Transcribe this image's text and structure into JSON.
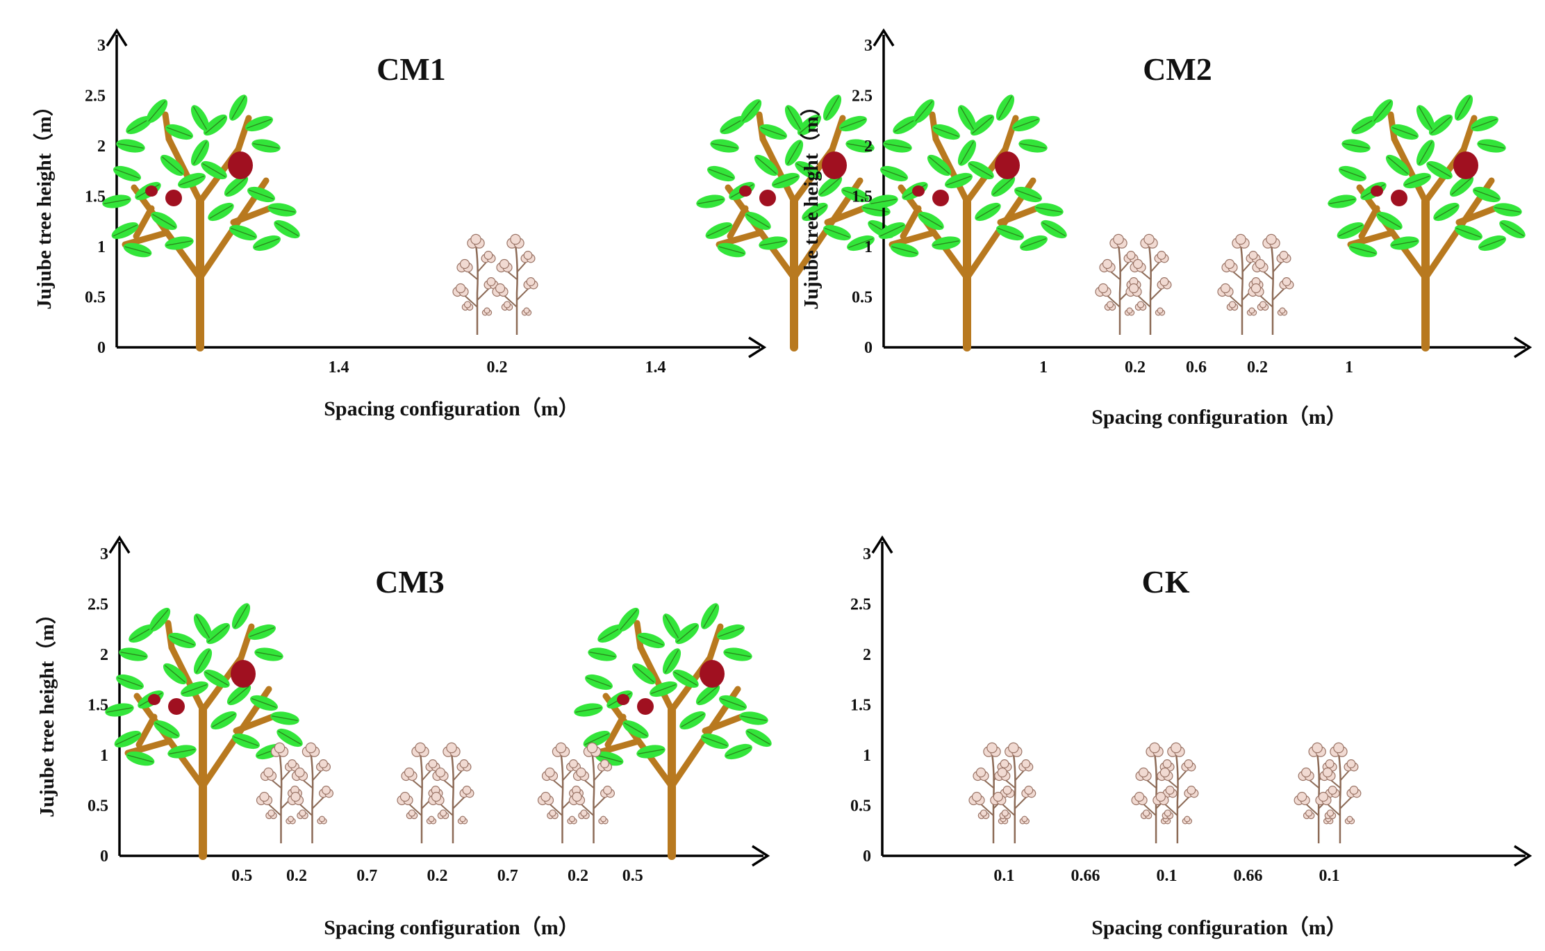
{
  "figure": {
    "y_ticks": [
      "0",
      "0.5",
      "1",
      "1.5",
      "2",
      "2.5",
      "3"
    ],
    "y_axis_label": "Jujube tree height（m）",
    "x_axis_label": "Spacing configuration（m）",
    "panels": [
      {
        "id": "cm1",
        "title": "CM1",
        "has_y_label": true,
        "trees_x_m": [
          0,
          3.0
        ],
        "cotton_x_m": [
          1.4,
          1.6
        ],
        "spacing_labels": [
          {
            "text": "1.4",
            "at_m": 0.7
          },
          {
            "text": "0.2",
            "at_m": 1.5
          },
          {
            "text": "1.4",
            "at_m": 2.3
          }
        ]
      },
      {
        "id": "cm2",
        "title": "CM2",
        "has_y_label": true,
        "trees_x_m": [
          0,
          3.0
        ],
        "cotton_x_m": [
          1.0,
          1.2,
          1.8,
          2.0
        ],
        "spacing_labels": [
          {
            "text": "1",
            "at_m": 0.5
          },
          {
            "text": "0.2",
            "at_m": 1.1
          },
          {
            "text": "0.6",
            "at_m": 1.5
          },
          {
            "text": "0.2",
            "at_m": 1.9
          },
          {
            "text": "1",
            "at_m": 2.5
          }
        ]
      },
      {
        "id": "cm3",
        "title": "CM3",
        "has_y_label": true,
        "trees_x_m": [
          0,
          3.0
        ],
        "cotton_x_m": [
          0.5,
          0.7,
          1.4,
          1.6,
          2.3,
          2.5
        ],
        "spacing_labels": [
          {
            "text": "0.5",
            "at_m": 0.25
          },
          {
            "text": "0.2",
            "at_m": 0.6
          },
          {
            "text": "0.7",
            "at_m": 1.05
          },
          {
            "text": "0.2",
            "at_m": 1.5
          },
          {
            "text": "0.7",
            "at_m": 1.95
          },
          {
            "text": "0.2",
            "at_m": 2.4
          },
          {
            "text": "0.5",
            "at_m": 2.75
          }
        ]
      },
      {
        "id": "ck",
        "title": "CK",
        "has_y_label": false,
        "trees_x_m": [],
        "cotton_x_m": [
          0.0,
          0.1,
          0.76,
          0.86,
          1.52,
          1.62
        ],
        "spacing_labels": [
          {
            "text": "0.1",
            "at_m": 0.05
          },
          {
            "text": "0.66",
            "at_m": 0.43
          },
          {
            "text": "0.1",
            "at_m": 0.81
          },
          {
            "text": "0.66",
            "at_m": 1.19
          },
          {
            "text": "0.1",
            "at_m": 1.57
          }
        ]
      }
    ],
    "colors": {
      "trunk": "#b8791f",
      "leaf": "#33e53a",
      "leaf_vein": "#2a8a1e",
      "fruit": "#a01020",
      "cotton_stem": "#8c6a56",
      "cotton_boll": "#f1dad2",
      "cotton_outline": "#9a7466"
    }
  }
}
